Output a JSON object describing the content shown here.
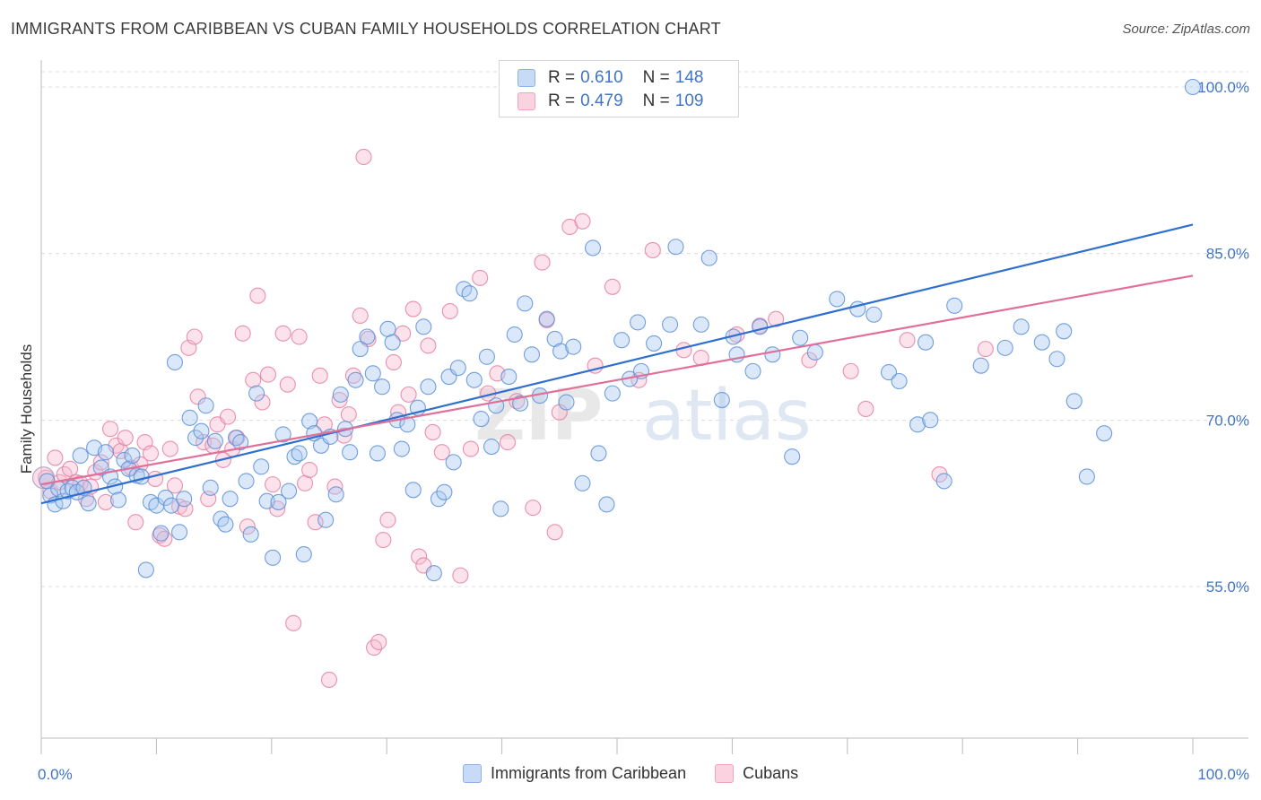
{
  "title": "IMMIGRANTS FROM CARIBBEAN VS CUBAN FAMILY HOUSEHOLDS CORRELATION CHART",
  "source": "Source: ZipAtlas.com",
  "watermark": {
    "part1": "ZIP",
    "part2": "atlas"
  },
  "legend": {
    "rows": [
      {
        "r_label": "R =",
        "r_value": "0.610",
        "n_label": "N =",
        "n_value": "148",
        "color": "#aac8f0"
      },
      {
        "r_label": "R =",
        "r_value": "0.479",
        "n_label": "N =",
        "n_value": "109",
        "color": "#f7b9cd"
      }
    ]
  },
  "bottom_legend": [
    {
      "label": "Immigrants from Caribbean",
      "color": "#aac8f0"
    },
    {
      "label": "Cubans",
      "color": "#f7b9cd"
    }
  ],
  "chart_data": {
    "type": "scatter",
    "title": "IMMIGRANTS FROM CARIBBEAN VS CUBAN FAMILY HOUSEHOLDS CORRELATION CHART",
    "xlabel": "",
    "ylabel": "Family Households",
    "xlim": [
      0,
      100
    ],
    "ylim": [
      40,
      101.5
    ],
    "x_tick_labels": [
      {
        "value": 0,
        "label": "0.0%"
      },
      {
        "value": 100,
        "label": "100.0%"
      }
    ],
    "y_ticks": [
      {
        "value": 55,
        "label": "55.0%"
      },
      {
        "value": 70,
        "label": "70.0%"
      },
      {
        "value": 85,
        "label": "85.0%"
      },
      {
        "value": 100,
        "label": "100.0%"
      }
    ],
    "grid": "horizontal dashed",
    "series": [
      {
        "name": "Immigrants from Caribbean",
        "color": "#5b8fd8",
        "fill": "#aac8f0",
        "trend": {
          "x0": 0,
          "y0": 62.5,
          "x1": 100,
          "y1": 87.6,
          "color": "#2f6fcf"
        },
        "points": [
          [
            0.5,
            64.5
          ],
          [
            0.8,
            63.2
          ],
          [
            1.2,
            62.4
          ],
          [
            1.5,
            63.8
          ],
          [
            1.9,
            62.7
          ],
          [
            2.3,
            63.6
          ],
          [
            2.7,
            63.9
          ],
          [
            3.1,
            63.5
          ],
          [
            3.4,
            66.8
          ],
          [
            3.7,
            63.9
          ],
          [
            4.1,
            62.5
          ],
          [
            4.6,
            67.5
          ],
          [
            5.2,
            65.7
          ],
          [
            5.6,
            67.1
          ],
          [
            6.0,
            64.9
          ],
          [
            6.4,
            64.0
          ],
          [
            6.7,
            62.8
          ],
          [
            7.2,
            66.4
          ],
          [
            7.6,
            65.6
          ],
          [
            7.9,
            66.8
          ],
          [
            8.3,
            65.0
          ],
          [
            8.7,
            64.9
          ],
          [
            9.1,
            56.5
          ],
          [
            9.5,
            62.6
          ],
          [
            10.0,
            62.3
          ],
          [
            10.4,
            59.8
          ],
          [
            10.8,
            63.0
          ],
          [
            11.3,
            62.3
          ],
          [
            11.6,
            75.2
          ],
          [
            12.0,
            59.9
          ],
          [
            12.4,
            62.9
          ],
          [
            12.9,
            70.2
          ],
          [
            13.4,
            68.4
          ],
          [
            13.9,
            69.0
          ],
          [
            14.3,
            71.3
          ],
          [
            14.7,
            63.9
          ],
          [
            15.1,
            68.1
          ],
          [
            15.6,
            61.1
          ],
          [
            16.0,
            60.6
          ],
          [
            16.4,
            62.9
          ],
          [
            16.9,
            68.4
          ],
          [
            17.3,
            68.0
          ],
          [
            17.8,
            64.5
          ],
          [
            18.2,
            59.7
          ],
          [
            18.7,
            72.4
          ],
          [
            19.1,
            65.8
          ],
          [
            19.6,
            62.7
          ],
          [
            20.1,
            57.6
          ],
          [
            20.6,
            62.6
          ],
          [
            21.0,
            68.7
          ],
          [
            21.5,
            63.6
          ],
          [
            22.0,
            66.7
          ],
          [
            22.4,
            67.0
          ],
          [
            22.8,
            57.9
          ],
          [
            23.3,
            69.9
          ],
          [
            23.7,
            68.8
          ],
          [
            24.3,
            67.7
          ],
          [
            24.7,
            61.0
          ],
          [
            25.1,
            68.5
          ],
          [
            25.6,
            63.3
          ],
          [
            26.0,
            72.3
          ],
          [
            26.4,
            69.2
          ],
          [
            26.8,
            67.1
          ],
          [
            27.3,
            73.6
          ],
          [
            27.7,
            76.4
          ],
          [
            28.3,
            77.5
          ],
          [
            28.8,
            74.2
          ],
          [
            29.2,
            67.0
          ],
          [
            29.6,
            73.0
          ],
          [
            30.1,
            78.2
          ],
          [
            30.5,
            77.0
          ],
          [
            30.9,
            70.0
          ],
          [
            31.3,
            67.4
          ],
          [
            31.8,
            69.6
          ],
          [
            32.3,
            63.7
          ],
          [
            32.7,
            71.1
          ],
          [
            33.2,
            78.4
          ],
          [
            33.6,
            73.0
          ],
          [
            34.1,
            56.2
          ],
          [
            34.5,
            62.9
          ],
          [
            35.0,
            63.5
          ],
          [
            35.4,
            73.9
          ],
          [
            35.8,
            66.2
          ],
          [
            36.2,
            74.7
          ],
          [
            36.7,
            81.8
          ],
          [
            37.2,
            81.4
          ],
          [
            37.6,
            73.6
          ],
          [
            38.2,
            70.1
          ],
          [
            38.7,
            75.7
          ],
          [
            39.1,
            67.6
          ],
          [
            39.5,
            71.3
          ],
          [
            39.9,
            62.0
          ],
          [
            40.6,
            73.9
          ],
          [
            41.1,
            77.7
          ],
          [
            41.6,
            71.5
          ],
          [
            42.0,
            80.5
          ],
          [
            42.6,
            75.9
          ],
          [
            43.3,
            72.2
          ],
          [
            43.9,
            79.1
          ],
          [
            44.6,
            77.3
          ],
          [
            45.1,
            76.2
          ],
          [
            45.6,
            71.6
          ],
          [
            46.2,
            76.6
          ],
          [
            47.0,
            64.3
          ],
          [
            47.9,
            85.5
          ],
          [
            48.4,
            67.0
          ],
          [
            49.1,
            62.4
          ],
          [
            49.6,
            72.4
          ],
          [
            50.4,
            77.2
          ],
          [
            51.1,
            73.7
          ],
          [
            51.8,
            78.8
          ],
          [
            52.1,
            74.4
          ],
          [
            53.2,
            76.9
          ],
          [
            54.6,
            78.6
          ],
          [
            55.1,
            85.6
          ],
          [
            57.3,
            78.6
          ],
          [
            58.0,
            84.6
          ],
          [
            59.1,
            71.8
          ],
          [
            60.1,
            77.5
          ],
          [
            60.4,
            75.9
          ],
          [
            61.8,
            74.4
          ],
          [
            62.4,
            78.4
          ],
          [
            63.5,
            75.9
          ],
          [
            65.2,
            66.7
          ],
          [
            65.9,
            77.4
          ],
          [
            67.2,
            76.1
          ],
          [
            69.1,
            80.9
          ],
          [
            70.9,
            80.0
          ],
          [
            72.3,
            79.5
          ],
          [
            73.6,
            74.3
          ],
          [
            74.5,
            73.5
          ],
          [
            76.1,
            69.6
          ],
          [
            76.8,
            77.0
          ],
          [
            77.2,
            70.0
          ],
          [
            78.4,
            64.5
          ],
          [
            79.3,
            80.3
          ],
          [
            81.6,
            74.9
          ],
          [
            83.7,
            76.5
          ],
          [
            85.1,
            78.4
          ],
          [
            86.9,
            77.0
          ],
          [
            88.2,
            75.5
          ],
          [
            88.8,
            78.0
          ],
          [
            89.7,
            71.7
          ],
          [
            90.8,
            64.9
          ],
          [
            92.3,
            68.8
          ],
          [
            100.0,
            100.0
          ]
        ]
      },
      {
        "name": "Cubans",
        "color": "#e57fa2",
        "fill": "#f7b9cd",
        "trend": {
          "x0": 0,
          "y0": 64.2,
          "x1": 100,
          "y1": 83.0,
          "color": "#e0709a"
        },
        "points": [
          [
            0.4,
            64.8
          ],
          [
            0.8,
            63.6
          ],
          [
            1.2,
            66.6
          ],
          [
            1.6,
            64.4
          ],
          [
            2.0,
            65.1
          ],
          [
            2.5,
            65.6
          ],
          [
            3.0,
            64.4
          ],
          [
            3.4,
            64.3
          ],
          [
            3.9,
            62.9
          ],
          [
            4.3,
            64.0
          ],
          [
            4.7,
            65.3
          ],
          [
            5.2,
            66.2
          ],
          [
            5.6,
            62.6
          ],
          [
            6.0,
            69.2
          ],
          [
            6.5,
            67.7
          ],
          [
            6.9,
            67.2
          ],
          [
            7.3,
            68.4
          ],
          [
            7.8,
            65.7
          ],
          [
            8.2,
            60.8
          ],
          [
            8.6,
            66.0
          ],
          [
            9.0,
            68.0
          ],
          [
            9.5,
            67.0
          ],
          [
            9.9,
            64.7
          ],
          [
            10.3,
            59.6
          ],
          [
            10.7,
            59.3
          ],
          [
            11.2,
            67.4
          ],
          [
            11.6,
            64.1
          ],
          [
            12.0,
            62.2
          ],
          [
            12.5,
            62.0
          ],
          [
            12.8,
            76.5
          ],
          [
            13.3,
            77.5
          ],
          [
            13.6,
            72.1
          ],
          [
            14.1,
            68.0
          ],
          [
            14.5,
            62.9
          ],
          [
            14.9,
            67.7
          ],
          [
            15.3,
            69.6
          ],
          [
            15.8,
            66.4
          ],
          [
            16.2,
            70.3
          ],
          [
            16.6,
            67.4
          ],
          [
            17.0,
            68.4
          ],
          [
            17.5,
            77.8
          ],
          [
            17.9,
            60.4
          ],
          [
            18.4,
            73.6
          ],
          [
            18.8,
            81.2
          ],
          [
            19.2,
            71.6
          ],
          [
            19.7,
            74.1
          ],
          [
            20.1,
            64.2
          ],
          [
            20.5,
            62.0
          ],
          [
            21.0,
            77.8
          ],
          [
            21.4,
            73.2
          ],
          [
            21.9,
            51.7
          ],
          [
            22.4,
            77.5
          ],
          [
            22.9,
            64.3
          ],
          [
            23.3,
            65.5
          ],
          [
            23.8,
            60.8
          ],
          [
            24.2,
            74.0
          ],
          [
            24.6,
            69.6
          ],
          [
            25.0,
            46.6
          ],
          [
            25.5,
            64.0
          ],
          [
            25.9,
            71.8
          ],
          [
            26.3,
            68.6
          ],
          [
            26.7,
            70.5
          ],
          [
            27.1,
            74.0
          ],
          [
            27.7,
            79.4
          ],
          [
            28.0,
            93.7
          ],
          [
            28.4,
            77.3
          ],
          [
            28.9,
            49.5
          ],
          [
            29.3,
            50.0
          ],
          [
            29.7,
            59.2
          ],
          [
            30.1,
            61.0
          ],
          [
            30.6,
            75.2
          ],
          [
            31.0,
            70.7
          ],
          [
            31.4,
            77.8
          ],
          [
            31.9,
            72.3
          ],
          [
            32.3,
            80.0
          ],
          [
            32.8,
            57.7
          ],
          [
            33.2,
            56.9
          ],
          [
            33.6,
            76.7
          ],
          [
            34.0,
            68.9
          ],
          [
            34.8,
            67.1
          ],
          [
            35.5,
            79.8
          ],
          [
            36.4,
            56.0
          ],
          [
            37.3,
            67.4
          ],
          [
            38.1,
            82.8
          ],
          [
            38.8,
            72.4
          ],
          [
            39.6,
            74.2
          ],
          [
            40.5,
            68.0
          ],
          [
            41.3,
            71.7
          ],
          [
            42.7,
            62.1
          ],
          [
            43.5,
            84.2
          ],
          [
            43.9,
            79.0
          ],
          [
            44.6,
            59.9
          ],
          [
            45.0,
            70.7
          ],
          [
            45.9,
            87.4
          ],
          [
            47.0,
            87.9
          ],
          [
            48.1,
            74.9
          ],
          [
            49.6,
            82.0
          ],
          [
            51.9,
            73.6
          ],
          [
            53.1,
            85.3
          ],
          [
            55.8,
            76.3
          ],
          [
            57.3,
            75.6
          ],
          [
            60.4,
            77.7
          ],
          [
            62.4,
            78.5
          ],
          [
            63.8,
            79.1
          ],
          [
            66.7,
            75.4
          ],
          [
            70.3,
            74.4
          ],
          [
            71.6,
            71.0
          ],
          [
            75.2,
            77.2
          ],
          [
            78.0,
            65.1
          ],
          [
            82.0,
            76.4
          ]
        ]
      }
    ]
  }
}
